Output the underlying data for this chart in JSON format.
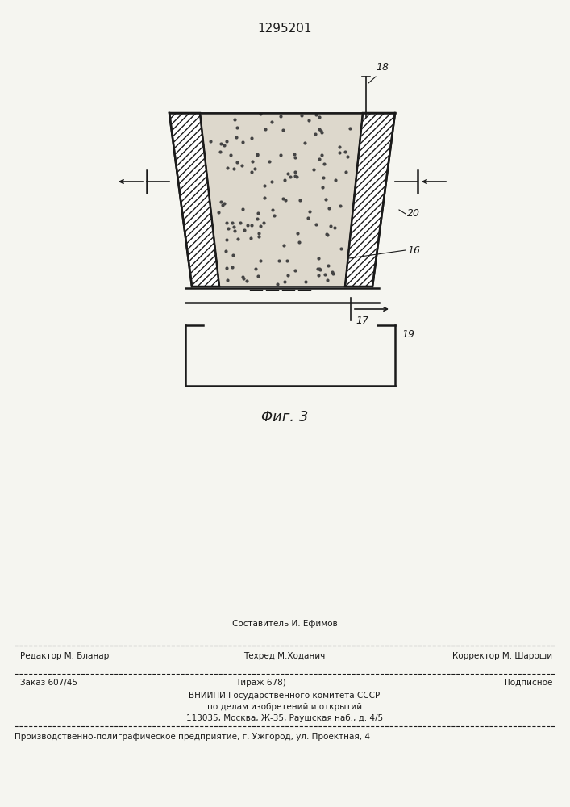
{
  "patent_number": "1295201",
  "fig_label": "Φиг. 3",
  "bg_color": "#f5f5f0",
  "line_color": "#1a1a1a",
  "footer": {
    "line1_center": "Составитель И. Ефимов",
    "line2_left": "Редактор М. Бланар",
    "line2_center": "Техред М.Ходанич",
    "line2_right": "Корректор М. Шароши",
    "line3_left": "Заказ 607/45",
    "line3_center": "Тираж 678)",
    "line3_right": "Подписное",
    "line4": "ВНИИПИ Государственного комитета СССР",
    "line5": "по делам изобретений и открытий",
    "line6": "113035, Москва, Ж-35, Раушская наб., д. 4/5",
    "line7": "Производственно-полиграфическое предприятие, г. Ужгород, ул. Проектная, 4"
  }
}
